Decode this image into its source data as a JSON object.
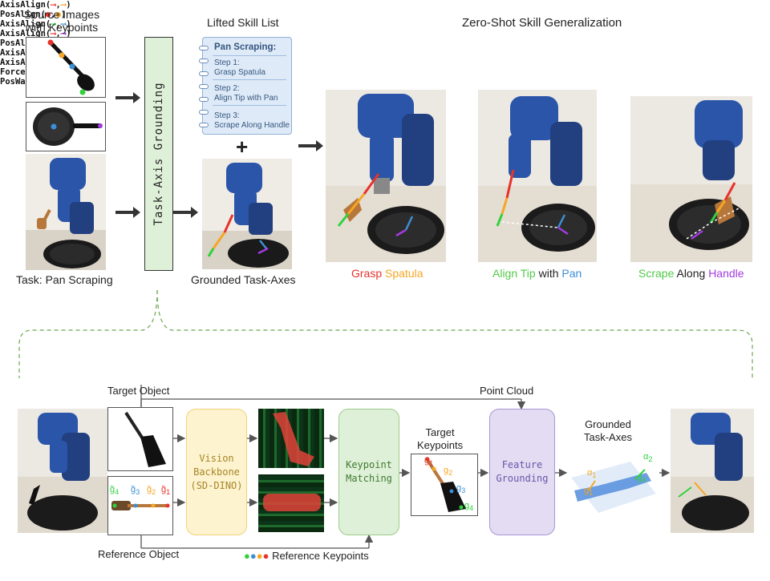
{
  "top": {
    "source_title": "Source Images\nwith Keypoints",
    "task_label": "Task: Pan Scraping",
    "grounding_block": "Task-Axis Grounding",
    "skill_list_title": "Lifted Skill List",
    "notebook": {
      "title": "Pan Scraping:",
      "lines": [
        "Step 1:",
        "Grasp Spatula",
        "Step 2:",
        "Align Tip with Pan",
        "Step 3:",
        "Scrape Along Handle"
      ]
    },
    "plus": "+",
    "grounded_label": "Grounded Task-Axes",
    "zero_shot_title": "Zero-Shot Skill Generalization",
    "skill1": {
      "code": [
        "AxisAlign(",
        ",",
        ")",
        "PosAlign(",
        ",",
        ")"
      ],
      "caption_a": "Grasp",
      "caption_b": "Spatula"
    },
    "skill2": {
      "code": [
        "AxisAlign(",
        ",",
        ")",
        "AxisAlign(",
        ",",
        ")",
        "PosAlign(",
        ",",
        ")"
      ],
      "caption_a": "Align Tip",
      "caption_mid": "with",
      "caption_b": "Pan"
    },
    "skill3": {
      "code": [
        "AxisAlign(",
        ",",
        ")",
        "AxisAlign(",
        ",",
        ")",
        "ForceAlign(",
        ")",
        "PosWaypoint(",
        ",",
        ",",
        ")"
      ],
      "caption_a": "Scrape",
      "caption_mid": "Along",
      "caption_b": "Handle"
    }
  },
  "bottom": {
    "target_object": "Target Object",
    "reference_object": "Reference Object",
    "point_cloud": "Point Cloud",
    "vision_backbone": "Vision\nBackbone\n(SD-DINO)",
    "keypoint_matching": "Keypoint\nMatching",
    "target_keypoints": "Target\nKeypoints",
    "feature_grounding": "Feature\nGrounding",
    "grounded_task_axes": "Grounded\nTask-Axes",
    "reference_keypoints": "Reference Keypoints",
    "ref_kp_labels": [
      "g̃",
      "g̃",
      "g̃",
      "g̃"
    ],
    "ref_kp_subs": [
      "4",
      "3",
      "2",
      "1"
    ],
    "tgt_kp_labels": [
      "g",
      "g",
      "g",
      "g"
    ],
    "tgt_kp_subs": [
      "1",
      "2",
      "3",
      "4"
    ],
    "axis_labels": [
      "α",
      "α",
      "g",
      "g"
    ],
    "axis_subs": [
      "1",
      "2",
      "1",
      "4"
    ]
  },
  "colors": {
    "red": "#e8322c",
    "orange": "#f5a623",
    "green": "#2fd23c",
    "blue": "#3b8fd6",
    "purple": "#a23be0",
    "robot": "#2a55a8",
    "block_green": "#dff0d8",
    "block_yellow": "#fdf3cf",
    "block_purple": "#e3dcf3"
  }
}
